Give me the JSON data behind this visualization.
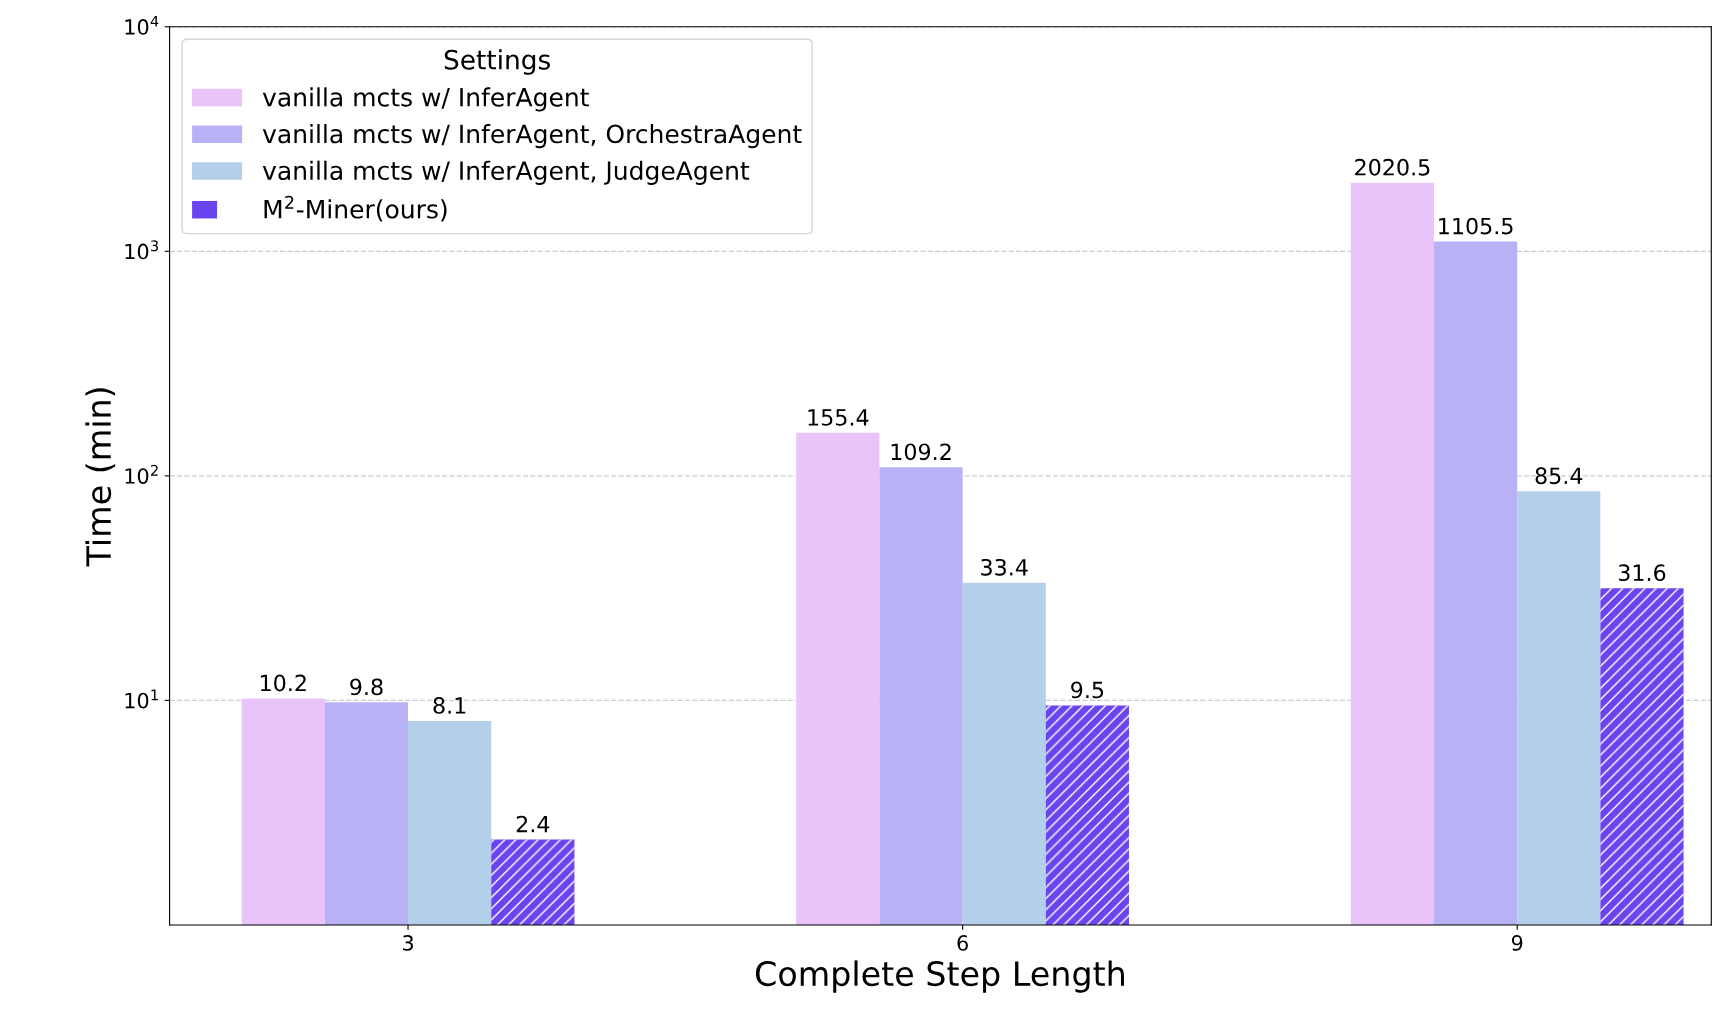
{
  "chart_data": {
    "type": "bar",
    "xlabel": "Complete Step Length",
    "ylabel": "Time (min)",
    "legend_title": "Settings",
    "categories": [
      "3",
      "6",
      "9"
    ],
    "series": [
      {
        "name": "vanilla mcts w/ InferAgent",
        "color": "#e8c4fb",
        "values": [
          10.2,
          155.4,
          2020.5
        ]
      },
      {
        "name": "vanilla mcts w/ InferAgent, OrchestraAgent",
        "color": "#b9b1f6",
        "values": [
          9.8,
          109.2,
          1105.5
        ]
      },
      {
        "name": "vanilla mcts w/ InferAgent, JudgeAgent",
        "color": "#b4cfe9",
        "values": [
          8.1,
          33.4,
          85.4
        ]
      },
      {
        "name": "M$^{2}$-Miner(ours)",
        "color": "#6a45ef",
        "values": [
          2.4,
          9.5,
          31.6
        ]
      }
    ],
    "log": true,
    "ylim": [
      1,
      10000
    ],
    "yticks": [
      {
        "value": 10,
        "label": "10$^{1}$"
      },
      {
        "value": 100,
        "label": "10$^{2}$"
      },
      {
        "value": 1000,
        "label": "10$^{3}$"
      },
      {
        "value": 10000,
        "label": "10$^{4}$"
      }
    ],
    "grid": "y",
    "legend": "top left",
    "data_labels": true
  }
}
